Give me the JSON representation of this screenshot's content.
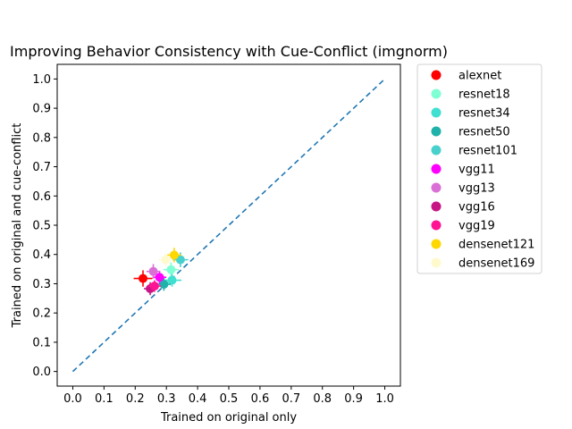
{
  "chart_data": {
    "type": "scatter",
    "title": "Improving Behavior Consistency with Cue-Conflict (imgnorm)",
    "xlabel": "Trained on original only",
    "ylabel": "Trained on original and cue-conflict",
    "xlim": [
      -0.05,
      1.05
    ],
    "ylim": [
      -0.05,
      1.05
    ],
    "xticks": [
      "0.0",
      "0.1",
      "0.2",
      "0.3",
      "0.4",
      "0.5",
      "0.6",
      "0.7",
      "0.8",
      "0.9",
      "1.0"
    ],
    "yticks": [
      "0.0",
      "0.1",
      "0.2",
      "0.3",
      "0.4",
      "0.5",
      "0.6",
      "0.7",
      "0.8",
      "0.9",
      "1.0"
    ],
    "grid": false,
    "legend_position": "outside-right",
    "diagonal": {
      "x": [
        0,
        1
      ],
      "y": [
        0,
        1
      ],
      "color": "#1f77b4",
      "style": "dashed"
    },
    "series": [
      {
        "name": "alexnet",
        "color": "#ff0000",
        "x": 0.225,
        "y": 0.318,
        "xerr": 0.03,
        "yerr": 0.028
      },
      {
        "name": "resnet18",
        "color": "#7fffd4",
        "x": 0.315,
        "y": 0.348,
        "xerr": 0.025,
        "yerr": 0.025
      },
      {
        "name": "resnet34",
        "color": "#40e0d0",
        "x": 0.318,
        "y": 0.312,
        "xerr": 0.03,
        "yerr": 0.022
      },
      {
        "name": "resnet50",
        "color": "#20b2aa",
        "x": 0.292,
        "y": 0.298,
        "xerr": 0.022,
        "yerr": 0.022
      },
      {
        "name": "resnet101",
        "color": "#48d1cc",
        "x": 0.345,
        "y": 0.382,
        "xerr": 0.025,
        "yerr": 0.025
      },
      {
        "name": "vgg11",
        "color": "#ff00ff",
        "x": 0.278,
        "y": 0.322,
        "xerr": 0.022,
        "yerr": 0.022
      },
      {
        "name": "vgg13",
        "color": "#da70d6",
        "x": 0.258,
        "y": 0.342,
        "xerr": 0.022,
        "yerr": 0.025
      },
      {
        "name": "vgg16",
        "color": "#c71585",
        "x": 0.248,
        "y": 0.283,
        "xerr": 0.02,
        "yerr": 0.022
      },
      {
        "name": "vgg19",
        "color": "#ff1493",
        "x": 0.262,
        "y": 0.292,
        "xerr": 0.02,
        "yerr": 0.02
      },
      {
        "name": "densenet121",
        "color": "#ffd700",
        "x": 0.325,
        "y": 0.398,
        "xerr": 0.022,
        "yerr": 0.025
      },
      {
        "name": "densenet169",
        "color": "#fffacd",
        "x": 0.298,
        "y": 0.382,
        "xerr": 0.022,
        "yerr": 0.022
      }
    ]
  }
}
